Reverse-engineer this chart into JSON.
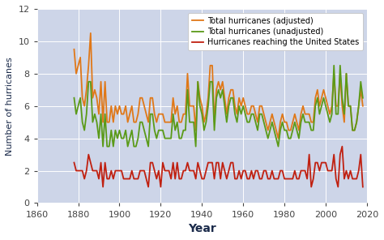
{
  "xlabel": "Year",
  "ylabel": "Number of hurricanes",
  "xlim": [
    1860,
    2020
  ],
  "ylim": [
    0,
    12
  ],
  "yticks": [
    0,
    2,
    4,
    6,
    8,
    10,
    12
  ],
  "xticks": [
    1860,
    1880,
    1900,
    1920,
    1940,
    1960,
    1980,
    2000,
    2020
  ],
  "bg_color": "#cdd5e8",
  "line_adjusted_color": "#e07818",
  "line_unadjusted_color": "#5a9a18",
  "line_us_color": "#c02010",
  "adjusted": {
    "years": [
      1878,
      1879,
      1880,
      1881,
      1882,
      1883,
      1884,
      1885,
      1886,
      1887,
      1888,
      1889,
      1890,
      1891,
      1892,
      1893,
      1894,
      1895,
      1896,
      1897,
      1898,
      1899,
      1900,
      1901,
      1902,
      1903,
      1904,
      1905,
      1906,
      1907,
      1908,
      1909,
      1910,
      1911,
      1912,
      1913,
      1914,
      1915,
      1916,
      1917,
      1918,
      1919,
      1920,
      1921,
      1922,
      1923,
      1924,
      1925,
      1926,
      1927,
      1928,
      1929,
      1930,
      1931,
      1932,
      1933,
      1934,
      1935,
      1936,
      1937,
      1938,
      1939,
      1940,
      1941,
      1942,
      1943,
      1944,
      1945,
      1946,
      1947,
      1948,
      1949,
      1950,
      1951,
      1952,
      1953,
      1954,
      1955,
      1956,
      1957,
      1958,
      1959,
      1960,
      1961,
      1962,
      1963,
      1964,
      1965,
      1966,
      1967,
      1968,
      1969,
      1970,
      1971,
      1972,
      1973,
      1974,
      1975,
      1976,
      1977,
      1978,
      1979,
      1980,
      1981,
      1982,
      1983,
      1984,
      1985,
      1986,
      1987,
      1988,
      1989,
      1990,
      1991,
      1992,
      1993,
      1994,
      1995,
      1996,
      1997,
      1998,
      1999,
      2000,
      2001,
      2002,
      2003,
      2004,
      2005,
      2006,
      2007,
      2008,
      2009,
      2010,
      2011,
      2012,
      2013,
      2014,
      2015,
      2016,
      2017,
      2018
    ],
    "values": [
      9.5,
      8.0,
      8.5,
      9.0,
      6.5,
      6.0,
      7.0,
      8.5,
      10.5,
      6.5,
      7.0,
      6.5,
      5.5,
      7.5,
      5.0,
      7.5,
      5.0,
      5.0,
      6.0,
      5.0,
      6.0,
      5.5,
      6.0,
      5.5,
      5.5,
      6.0,
      5.0,
      5.5,
      6.0,
      5.0,
      5.0,
      5.5,
      6.5,
      6.5,
      6.0,
      5.5,
      5.0,
      6.5,
      6.5,
      5.5,
      5.0,
      5.5,
      5.5,
      5.5,
      5.0,
      5.0,
      5.0,
      5.0,
      6.5,
      5.5,
      6.0,
      5.0,
      5.0,
      5.5,
      5.5,
      8.0,
      6.0,
      6.0,
      6.0,
      4.5,
      7.5,
      6.5,
      6.0,
      5.0,
      5.5,
      6.5,
      8.5,
      8.5,
      5.0,
      7.0,
      7.5,
      7.0,
      7.5,
      6.5,
      5.5,
      6.5,
      7.0,
      7.0,
      6.0,
      5.5,
      6.5,
      6.0,
      6.5,
      6.0,
      5.5,
      5.5,
      6.0,
      6.0,
      5.5,
      5.0,
      6.0,
      6.0,
      5.5,
      5.0,
      4.5,
      5.0,
      5.5,
      5.0,
      4.5,
      4.0,
      5.0,
      5.5,
      5.0,
      5.0,
      4.5,
      4.5,
      5.0,
      5.5,
      5.0,
      4.5,
      5.5,
      6.0,
      5.5,
      5.5,
      5.5,
      5.0,
      5.0,
      6.5,
      7.0,
      6.0,
      6.5,
      7.0,
      6.5,
      6.0,
      5.5,
      6.0,
      8.0,
      6.0,
      6.0,
      8.0,
      6.0,
      5.0,
      8.0,
      6.0,
      6.0,
      4.5,
      4.5,
      5.0,
      6.0,
      7.0,
      6.0
    ]
  },
  "unadjusted": {
    "years": [
      1878,
      1879,
      1880,
      1881,
      1882,
      1883,
      1884,
      1885,
      1886,
      1887,
      1888,
      1889,
      1890,
      1891,
      1892,
      1893,
      1894,
      1895,
      1896,
      1897,
      1898,
      1899,
      1900,
      1901,
      1902,
      1903,
      1904,
      1905,
      1906,
      1907,
      1908,
      1909,
      1910,
      1911,
      1912,
      1913,
      1914,
      1915,
      1916,
      1917,
      1918,
      1919,
      1920,
      1921,
      1922,
      1923,
      1924,
      1925,
      1926,
      1927,
      1928,
      1929,
      1930,
      1931,
      1932,
      1933,
      1934,
      1935,
      1936,
      1937,
      1938,
      1939,
      1940,
      1941,
      1942,
      1943,
      1944,
      1945,
      1946,
      1947,
      1948,
      1949,
      1950,
      1951,
      1952,
      1953,
      1954,
      1955,
      1956,
      1957,
      1958,
      1959,
      1960,
      1961,
      1962,
      1963,
      1964,
      1965,
      1966,
      1967,
      1968,
      1969,
      1970,
      1971,
      1972,
      1973,
      1974,
      1975,
      1976,
      1977,
      1978,
      1979,
      1980,
      1981,
      1982,
      1983,
      1984,
      1985,
      1986,
      1987,
      1988,
      1989,
      1990,
      1991,
      1992,
      1993,
      1994,
      1995,
      1996,
      1997,
      1998,
      1999,
      2000,
      2001,
      2002,
      2003,
      2004,
      2005,
      2006,
      2007,
      2008,
      2009,
      2010,
      2011,
      2012,
      2013,
      2014,
      2015,
      2016,
      2017,
      2018
    ],
    "values": [
      6.5,
      5.5,
      6.0,
      6.5,
      5.0,
      4.5,
      5.5,
      7.5,
      7.5,
      5.0,
      5.5,
      5.0,
      4.0,
      5.5,
      3.5,
      5.5,
      3.5,
      3.5,
      4.5,
      3.5,
      4.5,
      4.0,
      4.5,
      4.0,
      4.0,
      4.5,
      3.5,
      4.0,
      4.5,
      3.5,
      3.5,
      4.0,
      5.0,
      5.0,
      4.5,
      4.0,
      3.5,
      5.5,
      5.5,
      4.5,
      4.0,
      4.5,
      4.5,
      4.5,
      4.0,
      4.0,
      4.0,
      4.0,
      5.5,
      4.5,
      5.0,
      4.0,
      4.0,
      4.5,
      4.5,
      7.0,
      5.0,
      5.0,
      5.0,
      3.5,
      7.5,
      6.0,
      5.5,
      4.5,
      5.0,
      6.0,
      7.5,
      7.5,
      4.5,
      6.5,
      7.0,
      6.5,
      7.0,
      6.0,
      5.0,
      6.0,
      6.5,
      6.5,
      5.5,
      5.0,
      6.0,
      5.5,
      6.0,
      5.5,
      5.0,
      5.0,
      5.5,
      5.5,
      5.0,
      4.5,
      5.5,
      5.5,
      5.0,
      4.5,
      4.0,
      4.5,
      5.0,
      4.5,
      4.0,
      3.5,
      4.5,
      5.0,
      4.5,
      4.5,
      4.0,
      4.0,
      4.5,
      5.0,
      4.5,
      4.0,
      5.0,
      5.5,
      5.0,
      5.0,
      5.0,
      4.5,
      4.5,
      6.0,
      6.5,
      5.5,
      6.0,
      6.5,
      6.0,
      5.5,
      5.0,
      5.5,
      8.5,
      5.5,
      5.5,
      8.5,
      6.5,
      5.5,
      8.0,
      6.0,
      6.0,
      4.5,
      4.5,
      5.0,
      6.0,
      7.5,
      6.5
    ]
  },
  "us": {
    "years": [
      1878,
      1879,
      1880,
      1881,
      1882,
      1883,
      1884,
      1885,
      1886,
      1887,
      1888,
      1889,
      1890,
      1891,
      1892,
      1893,
      1894,
      1895,
      1896,
      1897,
      1898,
      1899,
      1900,
      1901,
      1902,
      1903,
      1904,
      1905,
      1906,
      1907,
      1908,
      1909,
      1910,
      1911,
      1912,
      1913,
      1914,
      1915,
      1916,
      1917,
      1918,
      1919,
      1920,
      1921,
      1922,
      1923,
      1924,
      1925,
      1926,
      1927,
      1928,
      1929,
      1930,
      1931,
      1932,
      1933,
      1934,
      1935,
      1936,
      1937,
      1938,
      1939,
      1940,
      1941,
      1942,
      1943,
      1944,
      1945,
      1946,
      1947,
      1948,
      1949,
      1950,
      1951,
      1952,
      1953,
      1954,
      1955,
      1956,
      1957,
      1958,
      1959,
      1960,
      1961,
      1962,
      1963,
      1964,
      1965,
      1966,
      1967,
      1968,
      1969,
      1970,
      1971,
      1972,
      1973,
      1974,
      1975,
      1976,
      1977,
      1978,
      1979,
      1980,
      1981,
      1982,
      1983,
      1984,
      1985,
      1986,
      1987,
      1988,
      1989,
      1990,
      1991,
      1992,
      1993,
      1994,
      1995,
      1996,
      1997,
      1998,
      1999,
      2000,
      2001,
      2002,
      2003,
      2004,
      2005,
      2006,
      2007,
      2008,
      2009,
      2010,
      2011,
      2012,
      2013,
      2014,
      2015,
      2016,
      2017,
      2018
    ],
    "values": [
      2.5,
      2.0,
      2.0,
      2.0,
      2.0,
      1.5,
      2.0,
      3.0,
      2.5,
      2.0,
      2.0,
      2.0,
      1.5,
      2.5,
      1.0,
      2.5,
      1.5,
      1.5,
      2.0,
      1.5,
      2.0,
      2.0,
      2.0,
      2.0,
      1.5,
      1.5,
      1.5,
      1.5,
      2.0,
      1.5,
      1.5,
      1.5,
      2.0,
      2.0,
      2.0,
      1.5,
      1.0,
      2.5,
      2.5,
      2.0,
      1.5,
      2.0,
      1.0,
      2.5,
      2.0,
      2.0,
      2.0,
      1.5,
      2.5,
      1.5,
      2.5,
      1.5,
      1.5,
      2.0,
      2.0,
      2.5,
      2.0,
      2.0,
      2.0,
      1.5,
      2.5,
      2.0,
      1.5,
      1.5,
      2.0,
      2.5,
      2.5,
      2.5,
      1.5,
      2.5,
      2.5,
      1.5,
      2.5,
      2.0,
      1.5,
      2.0,
      2.5,
      2.5,
      1.5,
      1.5,
      2.0,
      1.5,
      2.0,
      2.0,
      1.5,
      1.5,
      2.0,
      1.5,
      2.0,
      2.0,
      1.5,
      1.5,
      2.0,
      2.0,
      1.5,
      1.5,
      2.0,
      1.5,
      1.5,
      1.5,
      2.0,
      2.0,
      1.5,
      1.5,
      1.5,
      1.5,
      1.5,
      2.0,
      1.5,
      1.5,
      2.0,
      2.0,
      2.0,
      1.5,
      3.0,
      1.0,
      1.5,
      2.5,
      2.5,
      2.0,
      2.5,
      2.5,
      2.5,
      2.0,
      2.0,
      2.0,
      3.0,
      1.5,
      1.0,
      3.0,
      3.5,
      1.5,
      2.0,
      1.5,
      2.0,
      1.5,
      1.5,
      1.5,
      2.0,
      3.0,
      1.0
    ]
  },
  "legend_labels": [
    "Total hurricanes (adjusted)",
    "Total hurricanes (unadjusted)",
    "Hurricanes reaching the United States"
  ],
  "grid_color": "#ffffff",
  "tick_color": "#444444",
  "label_color": "#1a2a4a",
  "xlabel_fontsize": 10,
  "ylabel_fontsize": 8,
  "tick_fontsize": 8,
  "legend_fontsize": 7,
  "linewidth": 1.3
}
